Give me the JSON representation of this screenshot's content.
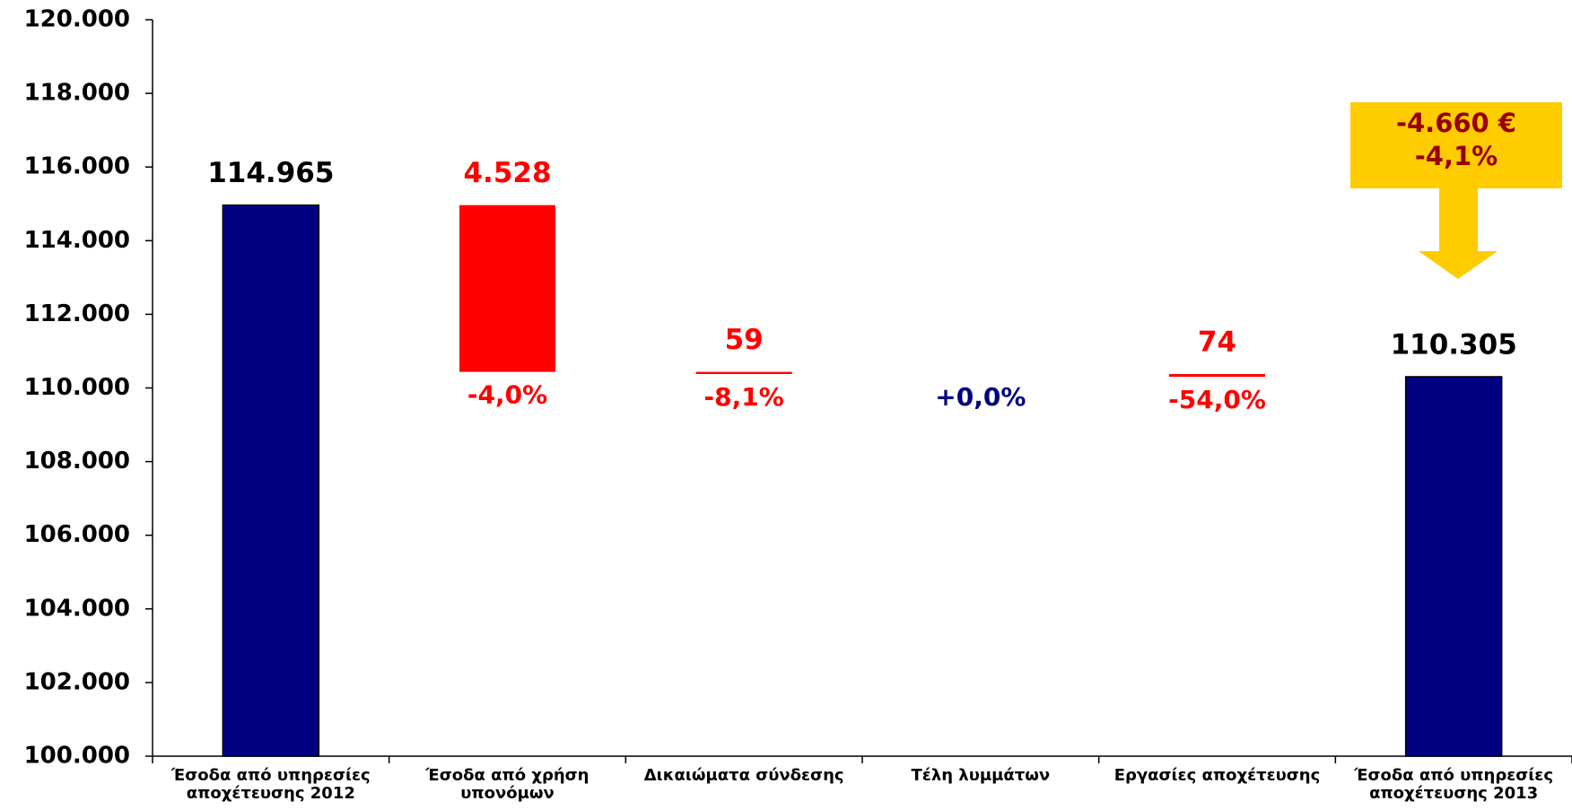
{
  "chart_data": {
    "type": "waterfall",
    "categories": [
      "Έσοδα από υπηρεσίες αποχέτευσης 2012",
      "Έσοδα από χρήση υπονόμων",
      "Δικαιώματα σύνδεσης",
      "Τέλη λυμμάτων",
      "Εργασίες αποχέτευσης",
      "Έσοδα από υπηρεσίες αποχέτευσης 2013"
    ],
    "values": [
      114965,
      -4528,
      -59,
      0,
      -74,
      110305
    ],
    "value_labels": [
      "114.965",
      "4.528",
      "59",
      null,
      "74",
      "110.305"
    ],
    "kinds": [
      "total",
      "change",
      "change",
      "change",
      "change",
      "total"
    ],
    "colors": {
      "total": "#000080",
      "decrease": "#ff0000"
    },
    "annotations": [
      "-4,0%",
      "-8,1%",
      "+0,0%",
      "-54,0%"
    ],
    "callout": [
      "-4.660 €",
      "-4,1%"
    ],
    "ylim": [
      100000,
      120000
    ],
    "yticks": [
      {
        "value": 100000,
        "label": "100.000"
      },
      {
        "value": 102000,
        "label": "102.000"
      },
      {
        "value": 104000,
        "label": "104.000"
      },
      {
        "value": 106000,
        "label": "106.000"
      },
      {
        "value": 108000,
        "label": "108.000"
      },
      {
        "value": 110000,
        "label": "110.000"
      },
      {
        "value": 112000,
        "label": "112.000"
      },
      {
        "value": 114000,
        "label": "114.000"
      },
      {
        "value": 116000,
        "label": "116.000"
      },
      {
        "value": 118000,
        "label": "118.000"
      },
      {
        "value": 120000,
        "label": "120.000"
      }
    ]
  }
}
